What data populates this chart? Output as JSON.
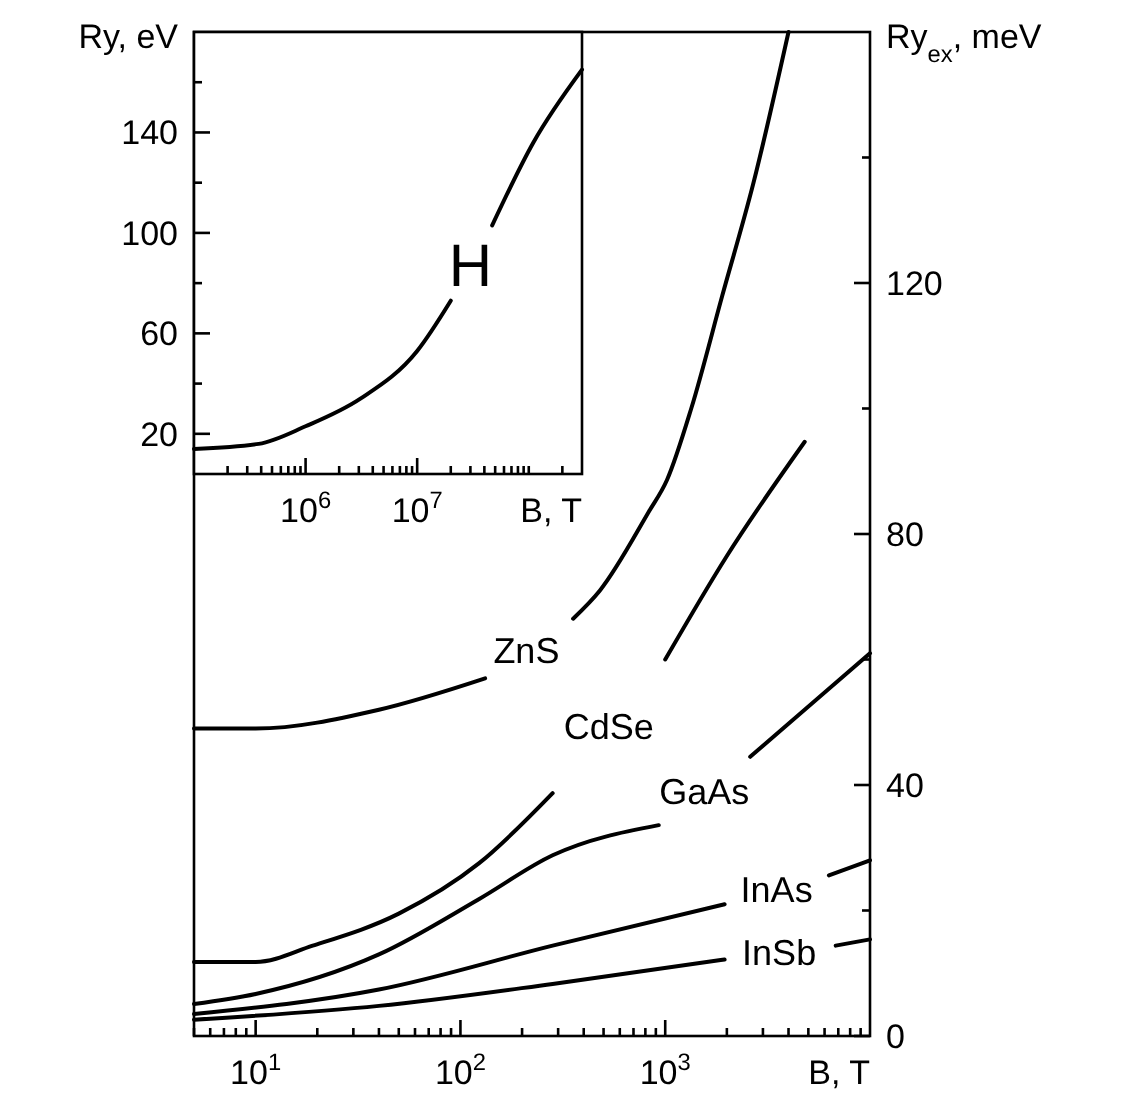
{
  "chart_data": [
    {
      "type": "line",
      "xlabel": "B, T",
      "y2label": "Ry$_{ex}$, meV",
      "xlim": [
        5,
        10000
      ],
      "log": "x",
      "y2lim": [
        0,
        160
      ],
      "xticks": [
        {
          "value": 5,
          "label": null
        },
        {
          "value": 6,
          "label": null
        },
        {
          "value": 7,
          "label": null
        },
        {
          "value": 8,
          "label": null
        },
        {
          "value": 9,
          "label": null
        },
        {
          "value": 10,
          "label": "10$^{1}$"
        },
        {
          "value": 20,
          "label": null
        },
        {
          "value": 30,
          "label": null
        },
        {
          "value": 40,
          "label": null
        },
        {
          "value": 50,
          "label": null
        },
        {
          "value": 60,
          "label": null
        },
        {
          "value": 70,
          "label": null
        },
        {
          "value": 80,
          "label": null
        },
        {
          "value": 90,
          "label": null
        },
        {
          "value": 100,
          "label": "10$^{2}$"
        },
        {
          "value": 200,
          "label": null
        },
        {
          "value": 300,
          "label": null
        },
        {
          "value": 400,
          "label": null
        },
        {
          "value": 500,
          "label": null
        },
        {
          "value": 600,
          "label": null
        },
        {
          "value": 700,
          "label": null
        },
        {
          "value": 800,
          "label": null
        },
        {
          "value": 900,
          "label": null
        },
        {
          "value": 1000,
          "label": "10$^{3}$"
        },
        {
          "value": 2000,
          "label": null
        },
        {
          "value": 3000,
          "label": null
        },
        {
          "value": 4000,
          "label": null
        },
        {
          "value": 5000,
          "label": null
        },
        {
          "value": 6000,
          "label": null
        },
        {
          "value": 7000,
          "label": null
        },
        {
          "value": 8000,
          "label": null
        },
        {
          "value": 9000,
          "label": null
        }
      ],
      "y2ticks": [
        0,
        {
          "value": 20,
          "label": null
        },
        40,
        {
          "value": 60,
          "label": null
        },
        80,
        {
          "value": 100,
          "label": null
        },
        120,
        {
          "value": 140,
          "label": null
        }
      ],
      "grid": false,
      "series": [
        {
          "name": "ZnS",
          "color": "#000000",
          "axis": "y2",
          "x": [
            5,
            10,
            40,
            132,
            210,
            355,
            480,
            830,
            1020,
            1340,
            1900,
            2700,
            4000
          ],
          "values": [
            49,
            49,
            52,
            57,
            null,
            66.5,
            71,
            83.5,
            88.6,
            100,
            118,
            136,
            160
          ]
        },
        {
          "name": "CdSe",
          "color": "#000000",
          "axis": "y2",
          "x": [
            5,
            10,
            19,
            50,
            123,
            282,
            530,
            1000,
            2000,
            4800
          ],
          "values": [
            11.8,
            11.8,
            14.4,
            19.5,
            27.5,
            38.7,
            null,
            60,
            76.5,
            94.7
          ]
        },
        {
          "name": "GaAs",
          "color": "#000000",
          "axis": "y2",
          "x": [
            5,
            10,
            40,
            123,
            282,
            930,
            1550,
            2600,
            10000
          ],
          "values": [
            5.1,
            6.7,
            13,
            21.8,
            28.8,
            33.6,
            null,
            44.5,
            61
          ]
        },
        {
          "name": "InAs",
          "color": "#000000",
          "axis": "y2",
          "x": [
            5,
            40,
            282,
            1950,
            3500,
            6300,
            10000
          ],
          "values": [
            3.5,
            7.4,
            14.4,
            21,
            null,
            25.6,
            28
          ]
        },
        {
          "name": "InSb",
          "color": "#000000",
          "axis": "y2",
          "x": [
            5,
            40,
            282,
            1950,
            3600,
            6800,
            10000
          ],
          "values": [
            2.6,
            4.8,
            8.3,
            12.2,
            null,
            14.4,
            15.4
          ]
        }
      ]
    },
    {
      "type": "line",
      "xlabel": "B, T",
      "ylabel": "Ry, eV",
      "xlim": [
        100000,
        300000000
      ],
      "log": "x",
      "ylim": [
        4,
        180
      ],
      "xticks": [
        {
          "value": 200000,
          "label": null
        },
        {
          "value": 300000,
          "label": null
        },
        {
          "value": 400000,
          "label": null
        },
        {
          "value": 500000,
          "label": null
        },
        {
          "value": 600000,
          "label": null
        },
        {
          "value": 700000,
          "label": null
        },
        {
          "value": 800000,
          "label": null
        },
        {
          "value": 900000,
          "label": null
        },
        {
          "value": 1000000,
          "label": "10$^{6}$"
        },
        {
          "value": 2000000,
          "label": null
        },
        {
          "value": 3000000,
          "label": null
        },
        {
          "value": 4000000,
          "label": null
        },
        {
          "value": 5000000,
          "label": null
        },
        {
          "value": 6000000,
          "label": null
        },
        {
          "value": 7000000,
          "label": null
        },
        {
          "value": 8000000,
          "label": null
        },
        {
          "value": 9000000,
          "label": null
        },
        {
          "value": 10000000,
          "label": "10$^{7}$"
        },
        {
          "value": 20000000,
          "label": null
        },
        {
          "value": 30000000,
          "label": null
        },
        {
          "value": 40000000,
          "label": null
        },
        {
          "value": 50000000,
          "label": null
        },
        {
          "value": 60000000,
          "label": null
        },
        {
          "value": 70000000,
          "label": null
        },
        {
          "value": 80000000,
          "label": null
        },
        {
          "value": 90000000,
          "label": null
        },
        {
          "value": 100000000,
          "label": null
        },
        {
          "value": 200000000,
          "label": null
        }
      ],
      "yticks": [
        20,
        {
          "value": 40,
          "label": null
        },
        60,
        {
          "value": 80,
          "label": null
        },
        100,
        {
          "value": 120,
          "label": null
        },
        140,
        {
          "value": 160,
          "label": null
        }
      ],
      "grid": false,
      "series": [
        {
          "name": "H",
          "color": "#000000",
          "x": [
            100000,
            380000,
            1000000,
            3100000,
            10000000,
            20000000,
            30000000,
            47000000,
            110000000,
            300000000
          ],
          "values": [
            14,
            16,
            23,
            34,
            53,
            73,
            null,
            103,
            136,
            165
          ]
        }
      ]
    }
  ]
}
